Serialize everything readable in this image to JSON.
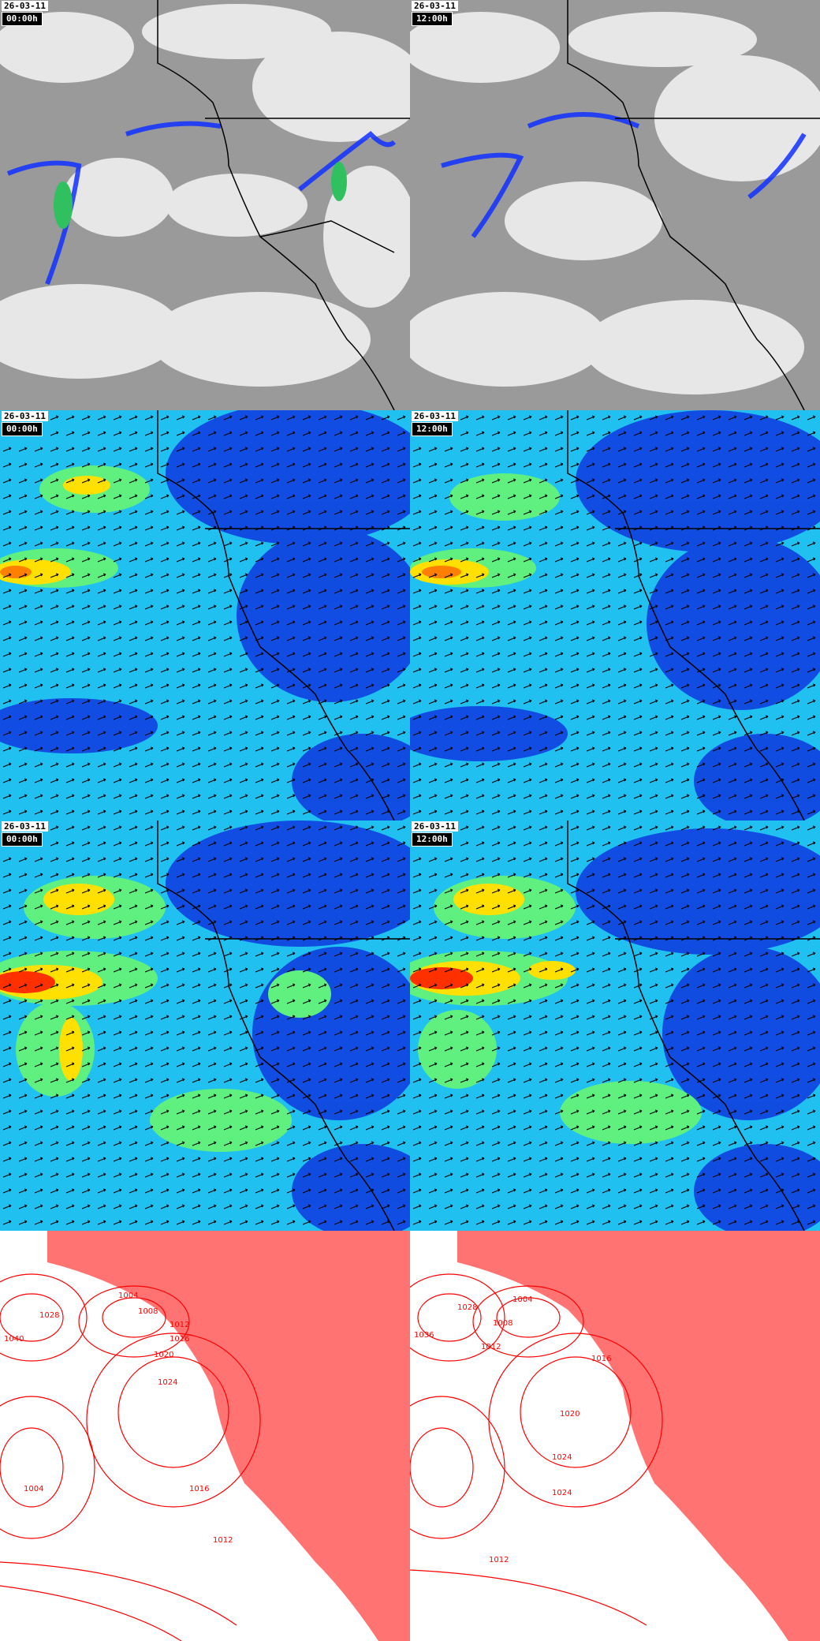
{
  "panels": [
    {
      "id": "sat-00",
      "type": "satellite",
      "date": "26-03-11",
      "time": "00:00h"
    },
    {
      "id": "sat-12",
      "type": "satellite",
      "date": "26-03-11",
      "time": "12:00h"
    },
    {
      "id": "wind-a-00",
      "type": "wind",
      "date": "26-03-11",
      "time": "00:00h"
    },
    {
      "id": "wind-a-12",
      "type": "wind",
      "date": "26-03-11",
      "time": "12:00h"
    },
    {
      "id": "wind-b-00",
      "type": "wind",
      "date": "26-03-11",
      "time": "00:00h"
    },
    {
      "id": "wind-b-12",
      "type": "wind",
      "date": "26-03-11",
      "time": "12:00h"
    },
    {
      "id": "press-00",
      "type": "pressure",
      "contour_labels": [
        "1004",
        "1008",
        "1012",
        "1016",
        "1020",
        "1024",
        "1028",
        "1040",
        "1004",
        "1016",
        "1012"
      ]
    },
    {
      "id": "press-12",
      "type": "pressure",
      "contour_labels": [
        "1004",
        "1008",
        "1012",
        "1016",
        "1020",
        "1024",
        "1028",
        "1036",
        "1024",
        "1012"
      ]
    }
  ],
  "colors": {
    "satellite_bg": "#9a9a9a",
    "cloud": "#f2f2f2",
    "precip": "#1030ff",
    "wind_low": "#1040e0",
    "wind_mid": "#00e0f0",
    "wind_high": "#ffe000",
    "wind_max": "#ff2000",
    "isobar": "#ff0000",
    "coast": "#000000"
  }
}
